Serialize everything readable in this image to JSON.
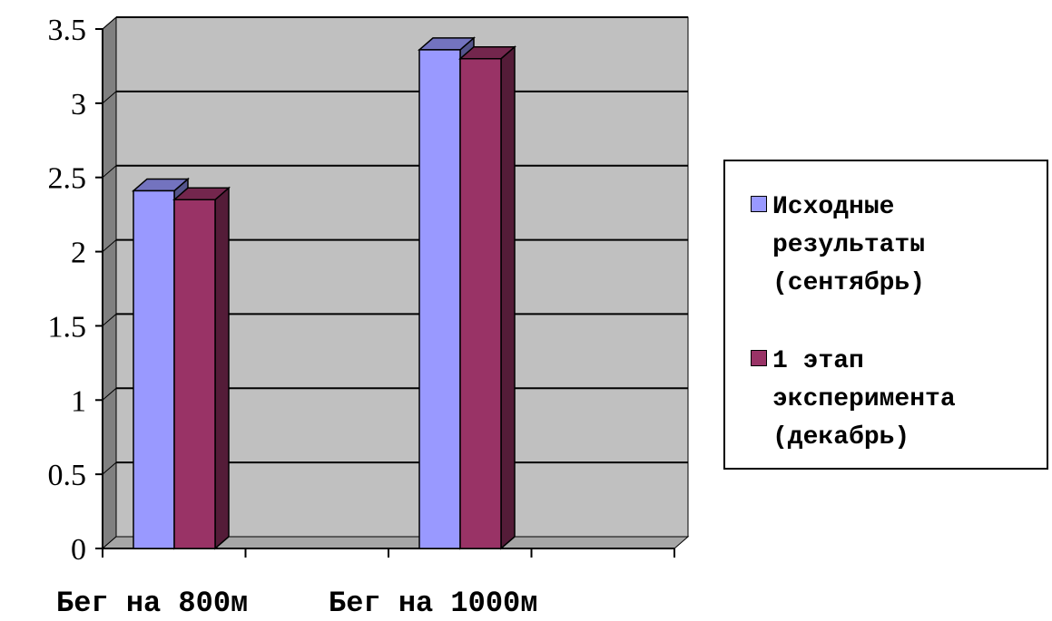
{
  "chart_data": {
    "type": "bar",
    "categories": [
      "Бег на 800м",
      "Бег на 1000м"
    ],
    "series": [
      {
        "name": "Исходные результаты (сентябрь)",
        "values": [
          2.41,
          3.36
        ],
        "color": "#9999ff"
      },
      {
        "name": "1 этап эксперимента (декабрь)",
        "values": [
          2.35,
          3.3
        ],
        "color": "#993366"
      }
    ],
    "ylim": [
      0,
      3.5
    ],
    "yticks": [
      "0",
      "0.5",
      "1",
      "1.5",
      "2",
      "2.5",
      "3",
      "3.5"
    ],
    "title": "",
    "xlabel": "",
    "ylabel": "",
    "grid": true,
    "legend_position": "right",
    "style": "3d-clustered-column",
    "wall_color": "#c0c0c0"
  }
}
